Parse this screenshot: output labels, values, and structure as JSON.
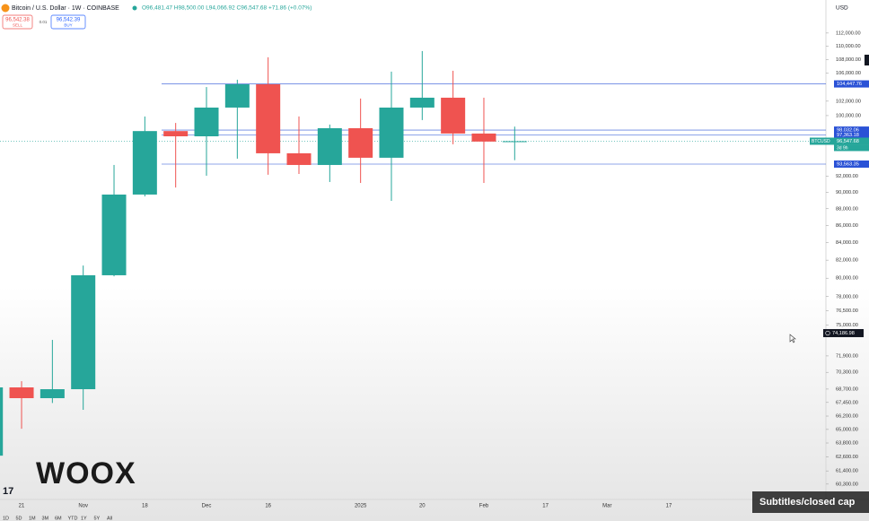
{
  "header": {
    "symbol": "Bitcoin / U.S. Dollar · 1W · COINBASE",
    "ohlc": "O96,481.47 H98,500.00 L94,066.92 C96,547.68 +71.86 (+0.07%)"
  },
  "trade": {
    "sell_price": "96,542.38",
    "sell": "SELL",
    "spread": "0.01",
    "buy_price": "96,542.39",
    "buy": "BUY"
  },
  "chart_data": {
    "type": "candlestick",
    "currency": "USD",
    "log_scale": true,
    "up_color": "#26a69a",
    "down_color": "#ef5350",
    "categories": [
      null,
      "21",
      null,
      "Nov",
      null,
      "18",
      null,
      "Dec",
      null,
      "16",
      null,
      null,
      "2025",
      null,
      "20",
      null,
      "Feb",
      null,
      "17",
      null,
      "Mar",
      null,
      "17"
    ],
    "open": [
      62700,
      68860,
      67850,
      68690,
      80320,
      89730,
      97900,
      97200,
      101110,
      104400,
      94960,
      93450,
      98290,
      94380,
      101110,
      102490,
      97570,
      96481.47,
      null,
      null,
      null,
      null,
      null
    ],
    "high": [
      69500,
      69450,
      73500,
      81400,
      93450,
      99880,
      99000,
      104000,
      105050,
      108330,
      99880,
      98780,
      102370,
      106220,
      109270,
      106350,
      102490,
      98500,
      null,
      null,
      null,
      null,
      null
    ],
    "low": [
      62500,
      65060,
      67400,
      66770,
      80200,
      89500,
      90600,
      92080,
      94260,
      92200,
      92300,
      91290,
      91170,
      88960,
      99390,
      96140,
      91170,
      94066.92,
      null,
      null,
      null,
      null,
      null
    ],
    "close": [
      68860,
      67850,
      68690,
      80320,
      89730,
      97900,
      97200,
      101110,
      104400,
      94960,
      93450,
      98290,
      94380,
      101110,
      102490,
      97570,
      96500,
      96547.68,
      null,
      null,
      null,
      null,
      null
    ],
    "ylim": [
      59040,
      117200
    ],
    "yticks": [
      {
        "value": 112000,
        "label": "112,000.00"
      },
      {
        "value": 110000,
        "label": "110,000.00"
      },
      {
        "value": 108000,
        "label": "108,000.00"
      },
      {
        "value": 106000,
        "label": "106,000.00"
      },
      {
        "value": 102000,
        "label": "102,000.00"
      },
      {
        "value": 100000,
        "label": "100,000.00"
      },
      {
        "value": 92000,
        "label": "92,000.00"
      },
      {
        "value": 90000,
        "label": "90,000.00"
      },
      {
        "value": 88000,
        "label": "88,000.00"
      },
      {
        "value": 86000,
        "label": "86,000.00"
      },
      {
        "value": 84000,
        "label": "84,000.00"
      },
      {
        "value": 82000,
        "label": "82,000.00"
      },
      {
        "value": 80000,
        "label": "80,000.00"
      },
      {
        "value": 78000,
        "label": "78,000.00"
      },
      {
        "value": 76500,
        "label": "76,500.00"
      },
      {
        "value": 75000,
        "label": "75,000.00"
      },
      {
        "value": 71900,
        "label": "71,900.00"
      },
      {
        "value": 70300,
        "label": "70,300.00"
      },
      {
        "value": 68700,
        "label": "68,700.00"
      },
      {
        "value": 67450,
        "label": "67,450.00"
      },
      {
        "value": 66200,
        "label": "66,200.00"
      },
      {
        "value": 65000,
        "label": "65,000.00"
      },
      {
        "value": 63800,
        "label": "63,800.00"
      },
      {
        "value": 62600,
        "label": "62,600.00"
      },
      {
        "value": 61400,
        "label": "61,400.00"
      },
      {
        "value": 60300,
        "label": "60,300.00"
      }
    ],
    "price_lines": [
      {
        "value": 104447.76,
        "label": "104,447.76",
        "color": "#2a52d6"
      },
      {
        "value": 98032.06,
        "label": "98,032.06",
        "color": "#2a52d6"
      },
      {
        "value": 97363.18,
        "label": "97,363.18",
        "color": "#2a52d6"
      },
      {
        "value": 93563.35,
        "label": "93,563.35",
        "color": "#2a52d6"
      }
    ],
    "current": {
      "symbol": "BTCUSD",
      "countdown": "3d 9h",
      "value": 96547.68,
      "label": "96,547.68",
      "color": "#26a69a"
    },
    "crosshair": {
      "value": 74186.98,
      "label": "74,186.98",
      "color": "#131722"
    }
  },
  "branding": {
    "logo": "WOOX",
    "tv": "17"
  },
  "toolbar": {
    "ranges": [
      "1D",
      "5D",
      "1M",
      "3M",
      "6M",
      "YTD",
      "1Y",
      "5Y",
      "All"
    ]
  },
  "captions": "Subtitles/closed cap"
}
